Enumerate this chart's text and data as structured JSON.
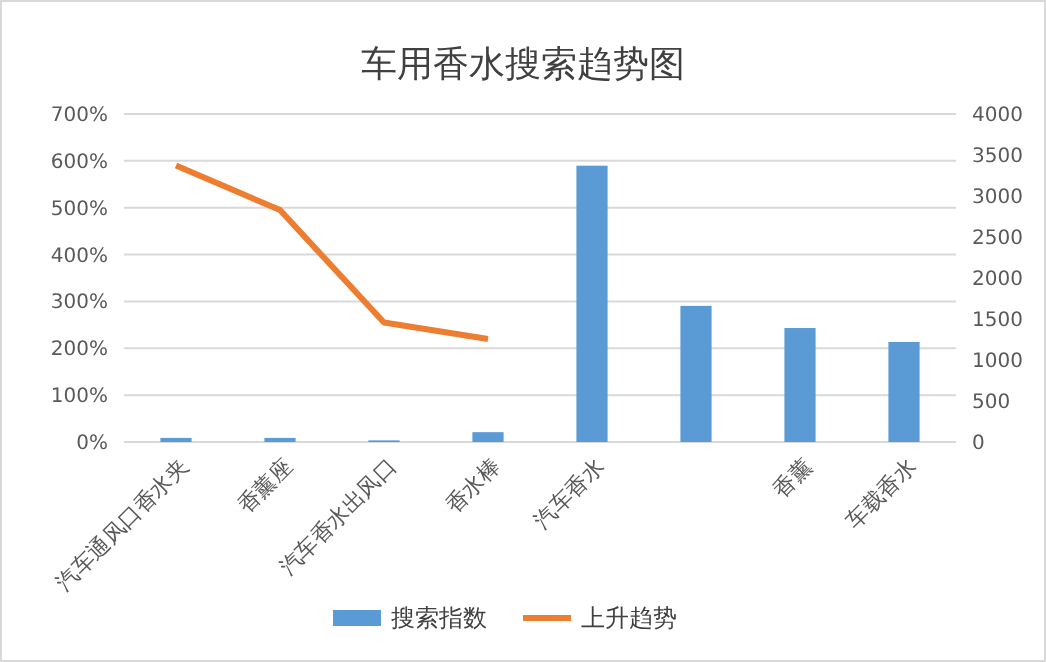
{
  "chart_data": {
    "type": "bar",
    "title": "车用香水搜索趋势图",
    "categories": [
      "汽车通风口香水夹",
      "香薰座",
      "汽车香水出风口",
      "香水棒",
      "汽车香水",
      null,
      "香薰",
      "车载香水"
    ],
    "series": [
      {
        "name": "搜索指数",
        "axis": "y2",
        "color": "#5b9bd5",
        "values": [
          50,
          50,
          20,
          120,
          3370,
          1660,
          1390,
          1220
        ]
      },
      {
        "name": "上升趋势",
        "type": "line",
        "axis": "y",
        "color": "#ed7d31",
        "values": [
          590,
          495,
          255,
          220,
          null,
          null,
          null,
          null
        ]
      }
    ],
    "ylim": [
      0,
      700
    ],
    "yticks": [
      {
        "value": 0,
        "label": "0%"
      },
      {
        "value": 100,
        "label": "100%"
      },
      {
        "value": 200,
        "label": "200%"
      },
      {
        "value": 300,
        "label": "300%"
      },
      {
        "value": 400,
        "label": "400%"
      },
      {
        "value": 500,
        "label": "500%"
      },
      {
        "value": 600,
        "label": "600%"
      },
      {
        "value": 700,
        "label": "700%"
      }
    ],
    "y2lim": [
      0,
      4000
    ],
    "y2ticks": [
      0,
      500,
      1000,
      1500,
      2000,
      2500,
      3000,
      3500,
      4000
    ],
    "grid": "y",
    "legend": "bottom",
    "marker": "none",
    "line_style": "solid"
  }
}
